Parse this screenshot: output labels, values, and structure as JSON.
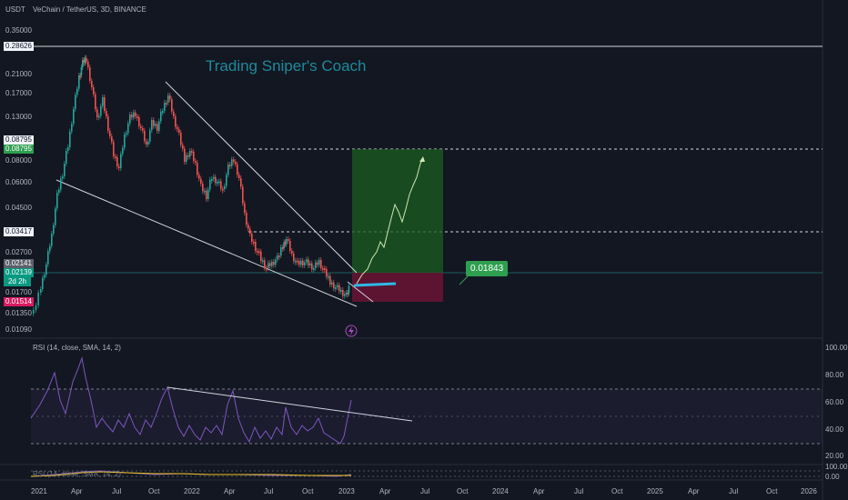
{
  "header": {
    "currency": "USDT",
    "symbol_title": "VeChain / TetherUS, 3D, BINANCE"
  },
  "watermark": "Trading Sniper's Coach",
  "price_axis": {
    "ticks": [
      "0.35000",
      "0.21000",
      "0.17000",
      "0.13000",
      "0.08000",
      "0.06000",
      "0.04500",
      "0.02700",
      "0.01700",
      "0.01350",
      "0.01090"
    ],
    "tags": {
      "high_line": "0.28626",
      "target_line": "0.08795",
      "target_green": "0.08795",
      "mid_line": "0.03417",
      "grey": "0.02141",
      "current": "0.02139",
      "countdown": "2d 2h",
      "stop": "0.01514"
    }
  },
  "callout": "0.01843",
  "time_axis": [
    "2021",
    "Apr",
    "Jul",
    "Oct",
    "2022",
    "Apr",
    "Jul",
    "Oct",
    "2023",
    "Apr",
    "Jul",
    "Oct",
    "2024",
    "Apr",
    "Jul",
    "Oct",
    "2025",
    "Apr",
    "Jul",
    "Oct",
    "2026"
  ],
  "rsi_panel": {
    "title": "RSI (14, close, SMA, 14, 2)",
    "ticks": [
      "100.00",
      "80.00",
      "60.00",
      "40.00",
      "20.00"
    ]
  },
  "rsi_panel2": {
    "title": "RSI (14, close, SMA, 14, 2)",
    "ticks": [
      "100.00",
      "0.00"
    ]
  },
  "colors": {
    "background": "#131722",
    "bull": "#26a69a",
    "bear": "#ef5350",
    "watermark": "#1e8a9a",
    "rsi_line": "#7e57c2",
    "callout": "#2e9e4f",
    "current_tag": "#089981",
    "stop_tag": "#d81b60",
    "target_tag": "#2e9e4f",
    "projection": "#cfe8b4",
    "hline": "#26a69a"
  },
  "icons": [
    "lightning-icon"
  ]
}
